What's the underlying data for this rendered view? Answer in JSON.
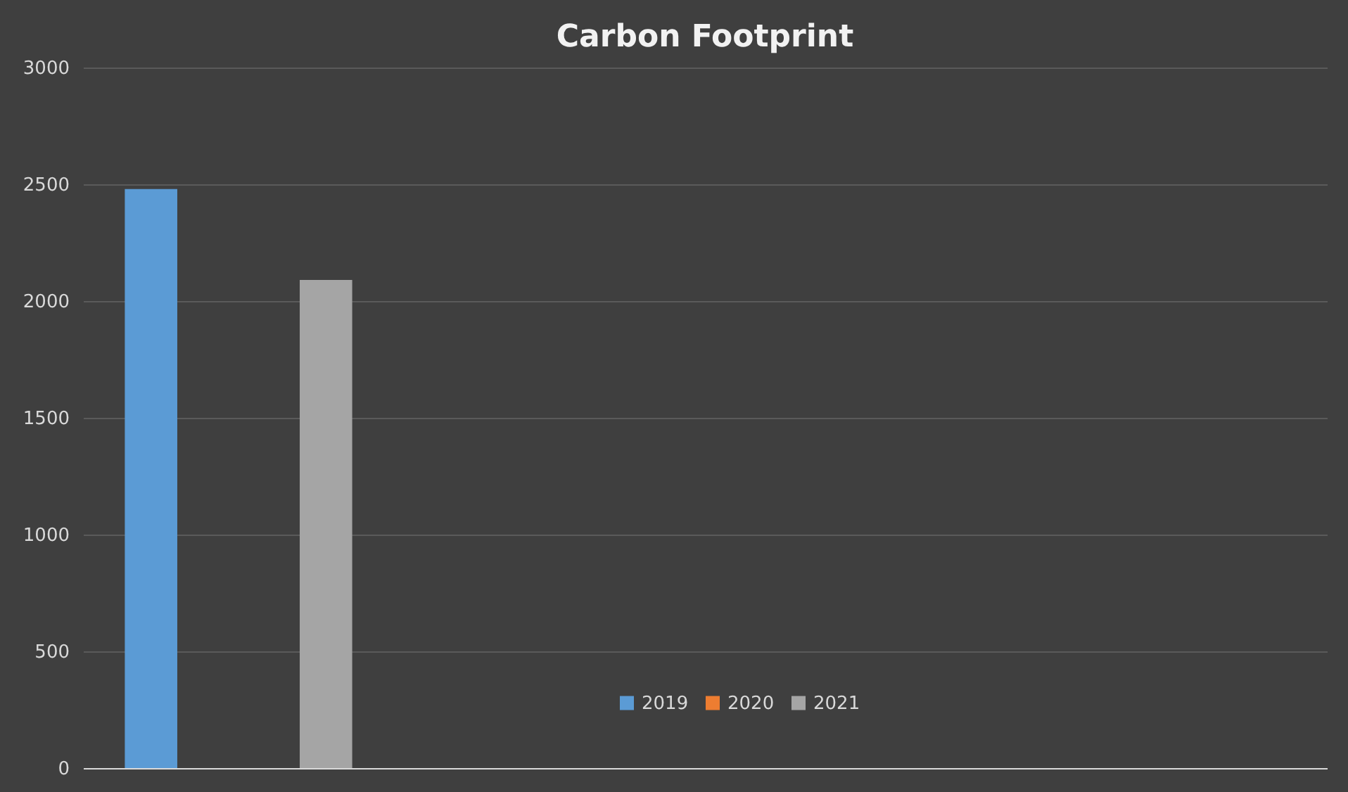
{
  "chart_data": {
    "type": "bar",
    "title": "Carbon Footprint",
    "categories": [
      null,
      null,
      null,
      null
    ],
    "series": [
      {
        "name": "2019",
        "color": "#5b9bd5",
        "values": [
          2480,
          null,
          null,
          null
        ]
      },
      {
        "name": "2020",
        "color": "#ed7d31",
        "values": [
          null,
          null,
          null,
          null
        ]
      },
      {
        "name": "2021",
        "color": "#a5a5a5",
        "values": [
          2090,
          null,
          null,
          null
        ]
      }
    ],
    "ylim": [
      0,
      3000
    ],
    "yticks": [
      0,
      500,
      1000,
      1500,
      2000,
      2500,
      3000
    ],
    "grid": "y",
    "legend": "bottom",
    "tick_labels": "y"
  }
}
